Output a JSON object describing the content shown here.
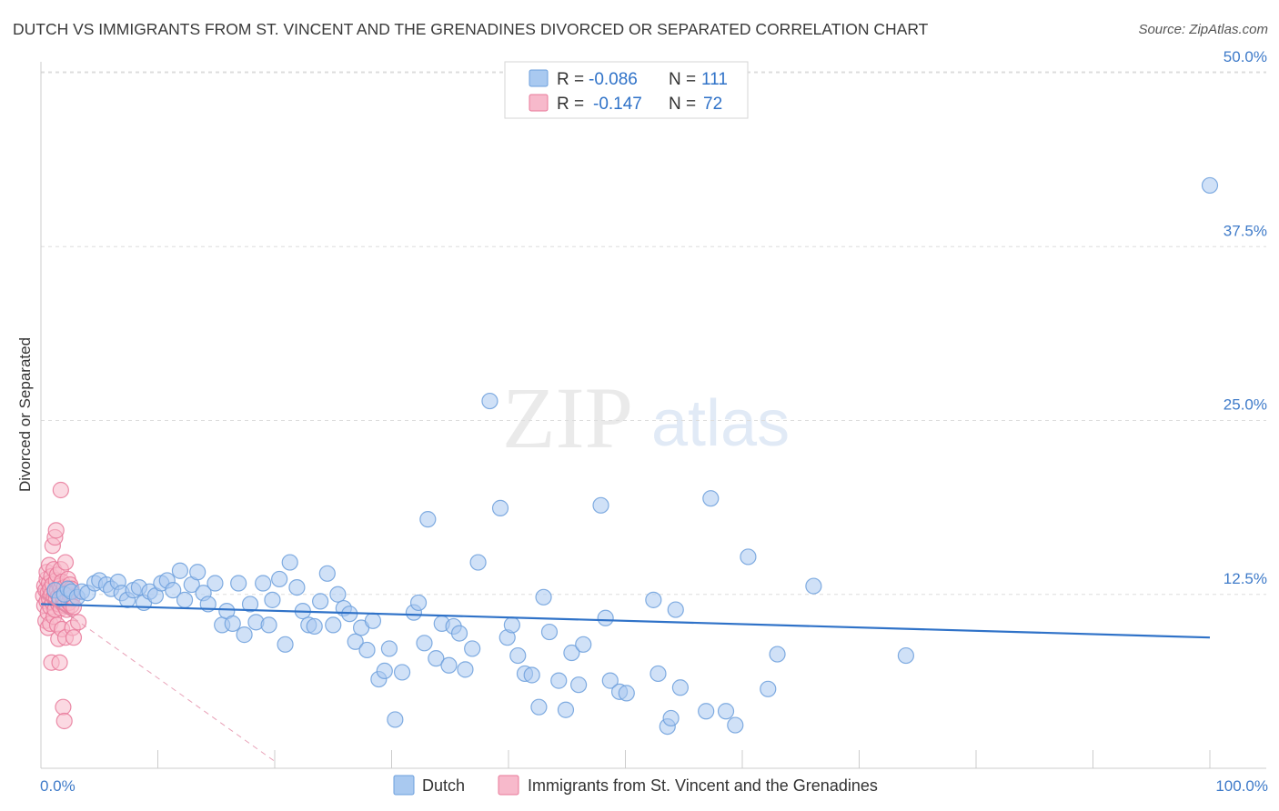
{
  "title": "DUTCH VS IMMIGRANTS FROM ST. VINCENT AND THE GRENADINES DIVORCED OR SEPARATED CORRELATION CHART",
  "source": "Source: ZipAtlas.com",
  "watermark": {
    "zip": "ZIP",
    "atlas": "atlas"
  },
  "colors": {
    "dutch_fill": "#a9c9f0",
    "dutch_stroke": "#6c9fdc",
    "dutch_line": "#2f72c8",
    "svg_fill": "#f7b9cb",
    "svg_stroke": "#e8799a",
    "svg_line": "#e38aa6",
    "axis_text": "#3f7bc9",
    "grid": "#dddddd"
  },
  "legend": {
    "rows": [
      {
        "r_label": "R =",
        "r_value": "-0.086",
        "n_label": "N =",
        "n_value": "111"
      },
      {
        "r_label": "R =",
        "r_value": "-0.147",
        "n_label": "N =",
        "n_value": "72"
      }
    ]
  },
  "chart_data": {
    "type": "scatter",
    "title": "DUTCH VS IMMIGRANTS FROM ST. VINCENT AND THE GRENADINES DIVORCED OR SEPARATED CORRELATION CHART",
    "xlabel": "",
    "ylabel": "Divorced or Separated",
    "xlim": [
      0,
      100
    ],
    "ylim": [
      0,
      50
    ],
    "x_tick_labels": [
      "0.0%",
      "100.0%"
    ],
    "y_ticks": [
      12.5,
      25.0,
      37.5,
      50.0
    ],
    "y_tick_labels": [
      "12.5%",
      "25.0%",
      "37.5%",
      "50.0%"
    ],
    "grid": true,
    "legend_position": "top-center",
    "series": [
      {
        "name": "Dutch",
        "r": -0.086,
        "n": 111,
        "trend": {
          "x": [
            0,
            100
          ],
          "y": [
            11.8,
            9.4
          ]
        },
        "points": [
          [
            1.2,
            12.8
          ],
          [
            1.6,
            12.2
          ],
          [
            2.0,
            12.5
          ],
          [
            2.3,
            12.9
          ],
          [
            2.6,
            12.7
          ],
          [
            3.1,
            12.3
          ],
          [
            3.5,
            12.7
          ],
          [
            4.0,
            12.6
          ],
          [
            4.6,
            13.3
          ],
          [
            5.0,
            13.5
          ],
          [
            5.6,
            13.2
          ],
          [
            6.0,
            12.9
          ],
          [
            6.6,
            13.4
          ],
          [
            6.9,
            12.6
          ],
          [
            7.4,
            12.1
          ],
          [
            7.9,
            12.8
          ],
          [
            8.4,
            13.0
          ],
          [
            8.8,
            11.9
          ],
          [
            9.3,
            12.7
          ],
          [
            9.8,
            12.4
          ],
          [
            10.3,
            13.3
          ],
          [
            10.8,
            13.5
          ],
          [
            11.3,
            12.8
          ],
          [
            11.9,
            14.2
          ],
          [
            12.3,
            12.1
          ],
          [
            12.9,
            13.2
          ],
          [
            13.4,
            14.1
          ],
          [
            13.9,
            12.6
          ],
          [
            14.3,
            11.8
          ],
          [
            14.9,
            13.3
          ],
          [
            15.5,
            10.3
          ],
          [
            15.9,
            11.3
          ],
          [
            16.4,
            10.4
          ],
          [
            16.9,
            13.3
          ],
          [
            17.4,
            9.6
          ],
          [
            17.9,
            11.8
          ],
          [
            18.4,
            10.5
          ],
          [
            19.0,
            13.3
          ],
          [
            19.5,
            10.3
          ],
          [
            19.8,
            12.1
          ],
          [
            20.4,
            13.6
          ],
          [
            20.9,
            8.9
          ],
          [
            21.3,
            14.8
          ],
          [
            21.9,
            13.0
          ],
          [
            22.4,
            11.3
          ],
          [
            22.9,
            10.3
          ],
          [
            23.4,
            10.2
          ],
          [
            23.9,
            12.0
          ],
          [
            24.5,
            14.0
          ],
          [
            25.0,
            10.3
          ],
          [
            25.4,
            12.5
          ],
          [
            25.9,
            11.5
          ],
          [
            26.4,
            11.1
          ],
          [
            26.9,
            9.1
          ],
          [
            27.4,
            10.1
          ],
          [
            27.9,
            8.5
          ],
          [
            28.4,
            10.6
          ],
          [
            28.9,
            6.4
          ],
          [
            29.4,
            7.0
          ],
          [
            29.8,
            8.6
          ],
          [
            30.3,
            3.5
          ],
          [
            30.9,
            6.9
          ],
          [
            31.9,
            11.2
          ],
          [
            32.3,
            11.9
          ],
          [
            32.8,
            9.0
          ],
          [
            33.1,
            17.9
          ],
          [
            33.8,
            7.9
          ],
          [
            34.3,
            10.4
          ],
          [
            34.9,
            7.4
          ],
          [
            35.3,
            10.2
          ],
          [
            35.8,
            9.7
          ],
          [
            36.3,
            7.1
          ],
          [
            36.9,
            8.6
          ],
          [
            37.4,
            14.8
          ],
          [
            38.4,
            26.4
          ],
          [
            39.3,
            18.7
          ],
          [
            39.9,
            9.4
          ],
          [
            40.3,
            10.3
          ],
          [
            40.8,
            8.1
          ],
          [
            41.4,
            6.8
          ],
          [
            42.0,
            6.7
          ],
          [
            42.6,
            4.4
          ],
          [
            43.0,
            12.3
          ],
          [
            43.5,
            9.8
          ],
          [
            44.3,
            6.3
          ],
          [
            44.9,
            4.2
          ],
          [
            45.4,
            8.3
          ],
          [
            46.0,
            6.0
          ],
          [
            46.4,
            8.9
          ],
          [
            47.9,
            18.9
          ],
          [
            48.3,
            10.8
          ],
          [
            48.7,
            6.3
          ],
          [
            49.5,
            5.5
          ],
          [
            50.1,
            5.4
          ],
          [
            52.4,
            12.1
          ],
          [
            52.8,
            6.8
          ],
          [
            53.6,
            3.0
          ],
          [
            53.9,
            3.6
          ],
          [
            54.3,
            11.4
          ],
          [
            54.7,
            5.8
          ],
          [
            56.9,
            4.1
          ],
          [
            57.3,
            19.4
          ],
          [
            58.6,
            4.1
          ],
          [
            59.4,
            3.1
          ],
          [
            60.5,
            15.2
          ],
          [
            62.2,
            5.7
          ],
          [
            63.0,
            8.2
          ],
          [
            66.1,
            13.1
          ],
          [
            74.0,
            8.1
          ],
          [
            100.0,
            41.9
          ]
        ]
      },
      {
        "name": "Immigrants from St. Vincent and the Grenadines",
        "r": -0.147,
        "n": 72,
        "trend": {
          "x": [
            0,
            2.8
          ],
          "y": [
            12.4,
            10.8
          ]
        },
        "trend_extension": {
          "x": [
            2.8,
            20.0
          ],
          "y": [
            10.8,
            0.5
          ]
        },
        "points": [
          [
            0.2,
            12.4
          ],
          [
            0.3,
            13.1
          ],
          [
            0.3,
            11.7
          ],
          [
            0.4,
            12.8
          ],
          [
            0.4,
            10.6
          ],
          [
            0.5,
            13.6
          ],
          [
            0.5,
            12.0
          ],
          [
            0.5,
            14.1
          ],
          [
            0.6,
            11.2
          ],
          [
            0.6,
            12.6
          ],
          [
            0.6,
            10.1
          ],
          [
            0.7,
            13.3
          ],
          [
            0.7,
            12.2
          ],
          [
            0.7,
            14.6
          ],
          [
            0.8,
            11.6
          ],
          [
            0.8,
            12.9
          ],
          [
            0.8,
            10.4
          ],
          [
            0.9,
            13.8
          ],
          [
            0.9,
            12.5
          ],
          [
            0.9,
            7.6
          ],
          [
            1.0,
            11.9
          ],
          [
            1.0,
            13.2
          ],
          [
            1.0,
            16.0
          ],
          [
            1.1,
            12.3
          ],
          [
            1.1,
            14.3
          ],
          [
            1.1,
            10.9
          ],
          [
            1.2,
            12.7
          ],
          [
            1.2,
            16.6
          ],
          [
            1.2,
            11.4
          ],
          [
            1.3,
            13.5
          ],
          [
            1.3,
            12.1
          ],
          [
            1.3,
            17.1
          ],
          [
            1.4,
            12.8
          ],
          [
            1.4,
            10.3
          ],
          [
            1.4,
            13.9
          ],
          [
            1.5,
            11.8
          ],
          [
            1.5,
            12.4
          ],
          [
            1.5,
            9.3
          ],
          [
            1.6,
            13.1
          ],
          [
            1.6,
            12.0
          ],
          [
            1.6,
            7.6
          ],
          [
            1.7,
            11.5
          ],
          [
            1.7,
            12.9
          ],
          [
            1.7,
            14.3
          ],
          [
            1.8,
            12.6
          ],
          [
            1.8,
            10.0
          ],
          [
            1.8,
            13.4
          ],
          [
            1.9,
            11.9
          ],
          [
            1.9,
            12.3
          ],
          [
            1.9,
            4.4
          ],
          [
            2.0,
            13.0
          ],
          [
            2.0,
            11.7
          ],
          [
            2.0,
            3.4
          ],
          [
            2.1,
            12.5
          ],
          [
            2.1,
            14.8
          ],
          [
            2.1,
            9.4
          ],
          [
            2.2,
            12.8
          ],
          [
            2.2,
            11.4
          ],
          [
            2.3,
            12.2
          ],
          [
            2.3,
            13.6
          ],
          [
            2.4,
            12.6
          ],
          [
            2.4,
            11.9
          ],
          [
            2.5,
            13.2
          ],
          [
            2.5,
            12.4
          ],
          [
            2.6,
            11.7
          ],
          [
            2.6,
            12.9
          ],
          [
            2.7,
            10.1
          ],
          [
            2.7,
            12.3
          ],
          [
            2.8,
            11.6
          ],
          [
            2.8,
            9.4
          ],
          [
            3.2,
            10.5
          ],
          [
            1.7,
            20.0
          ]
        ]
      }
    ]
  },
  "bottom_legend": [
    {
      "label": "Dutch"
    },
    {
      "label": "Immigrants from St. Vincent and the Grenadines"
    }
  ]
}
